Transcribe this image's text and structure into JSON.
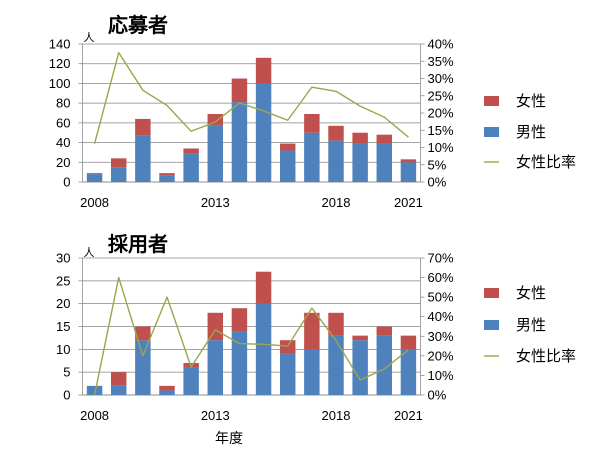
{
  "chart_data": [
    {
      "type": "bar",
      "stacked": true,
      "title": "応募者",
      "ylabel": "人",
      "x": [
        2008,
        2009,
        2010,
        2011,
        2012,
        2013,
        2014,
        2015,
        2016,
        2017,
        2018,
        2019,
        2020,
        2021
      ],
      "x_tick_labels": [
        "2008",
        "2013",
        "2018",
        "2021"
      ],
      "ylim": [
        0,
        140
      ],
      "y_tick_labels": [
        "0",
        "20",
        "40",
        "60",
        "80",
        "100",
        "120",
        "140"
      ],
      "y2lim": [
        0,
        40
      ],
      "y2_tick_labels": [
        "0%",
        "5%",
        "10%",
        "15%",
        "20%",
        "25%",
        "30%",
        "35%",
        "40%"
      ],
      "series": [
        {
          "name": "男性",
          "type": "bar",
          "axis": "primary",
          "color": "#4F81BD",
          "values": [
            8,
            15,
            47,
            7,
            29,
            57,
            81,
            100,
            32,
            50,
            42,
            39,
            39,
            20
          ]
        },
        {
          "name": "女性",
          "type": "bar",
          "axis": "primary",
          "color": "#C0504D",
          "values": [
            1,
            9,
            17,
            2,
            5,
            12,
            24,
            26,
            7,
            19,
            15,
            11,
            9,
            3
          ]
        },
        {
          "name": "女性比率",
          "type": "line",
          "axis": "secondary",
          "color": "#9BA64A",
          "values": [
            11.1,
            37.5,
            26.6,
            22.2,
            14.7,
            17.4,
            22.9,
            20.6,
            17.9,
            27.5,
            26.3,
            22.0,
            18.8,
            13.0
          ]
        }
      ],
      "legend_position": "right",
      "grid": true
    },
    {
      "type": "bar",
      "stacked": true,
      "title": "採用者",
      "ylabel": "人",
      "xlabel": "年度",
      "x": [
        2008,
        2009,
        2010,
        2011,
        2012,
        2013,
        2014,
        2015,
        2016,
        2017,
        2018,
        2019,
        2020,
        2021
      ],
      "x_tick_labels": [
        "2008",
        "2013",
        "2018",
        "2021"
      ],
      "ylim": [
        0,
        30
      ],
      "y_tick_labels": [
        "0",
        "5",
        "10",
        "15",
        "20",
        "25",
        "30"
      ],
      "y2lim": [
        0,
        70
      ],
      "y2_tick_labels": [
        "0%",
        "10%",
        "20%",
        "30%",
        "40%",
        "50%",
        "60%",
        "70%"
      ],
      "series": [
        {
          "name": "男性",
          "type": "bar",
          "axis": "primary",
          "color": "#4F81BD",
          "values": [
            2,
            2,
            12,
            1,
            6,
            12,
            14,
            20,
            9,
            10,
            13,
            12,
            13,
            10
          ]
        },
        {
          "name": "女性",
          "type": "bar",
          "axis": "primary",
          "color": "#C0504D",
          "values": [
            0,
            3,
            3,
            1,
            1,
            6,
            5,
            7,
            3,
            8,
            5,
            1,
            2,
            3
          ]
        },
        {
          "name": "女性比率",
          "type": "line",
          "axis": "secondary",
          "color": "#9BA64A",
          "values": [
            0,
            60.0,
            20.0,
            50.0,
            14.3,
            33.3,
            26.3,
            25.9,
            25.0,
            44.4,
            27.8,
            7.7,
            13.3,
            23.1
          ]
        }
      ],
      "legend_position": "right",
      "grid": true
    }
  ]
}
